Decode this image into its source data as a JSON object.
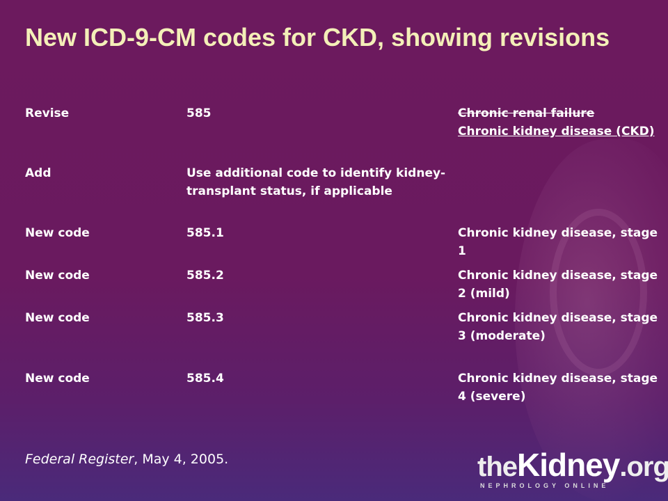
{
  "title": "New ICD-9-CM codes for CKD, showing revisions",
  "rows": [
    {
      "action": "Revise",
      "code": "585",
      "description_struck": "Chronic renal failure",
      "description": "Chronic kidney disease (CKD)"
    },
    {
      "action": "Add",
      "code": "Use additional code to identify kidney-transplant status, if applicable",
      "description": ""
    },
    {
      "action": "New code",
      "code": "585.1",
      "description": "Chronic kidney disease, stage 1"
    },
    {
      "action": "New code",
      "code": "585.2",
      "description": "Chronic kidney disease, stage 2 (mild)"
    },
    {
      "action": "New code",
      "code": "585.3",
      "description": "Chronic kidney disease, stage 3 (moderate)"
    },
    {
      "action": "New code",
      "code": "585.4",
      "description": "Chronic kidney disease, stage 4 (severe)"
    }
  ],
  "footer": {
    "source_italic": "Federal Register",
    "source_rest": ", May 4, 2005."
  },
  "logo": {
    "part1": "the",
    "part2": "Kidney",
    "part3": ".org",
    "tagline": "NEPHROLOGY ONLINE"
  }
}
